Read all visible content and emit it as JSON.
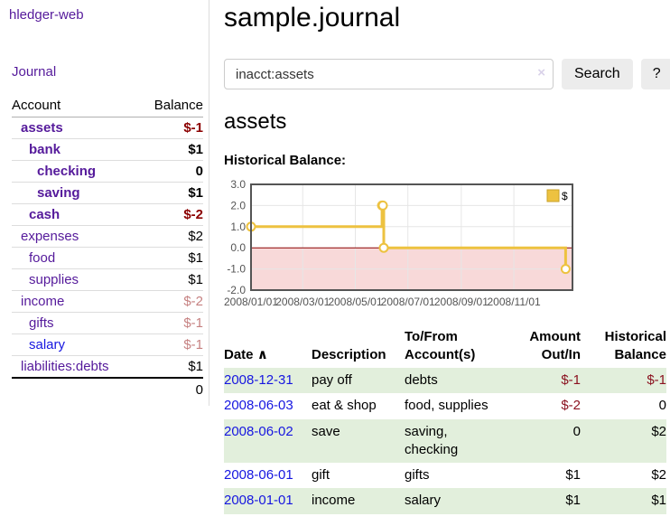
{
  "app": {
    "brand": "hledger-web"
  },
  "colors": {
    "link_purple": "#551a9b",
    "link_blue": "#1616e0",
    "negative_strong": "#8b0000",
    "negative_muted": "rgba(139,0,0,0.5)",
    "row_stripe_green": "#e2efdc",
    "chart_line_gold": "#EDC240",
    "chart_negative_fill": "#f8d9d9",
    "chart_zero_line": "#8b0000"
  },
  "sidebar": {
    "nav": [
      {
        "label": "Journal"
      }
    ],
    "accounts_table": {
      "headers": {
        "account": "Account",
        "balance": "Balance"
      },
      "rows": [
        {
          "account": "assets",
          "balance": "$-1",
          "depth": 1,
          "bold": true,
          "balance_style": "negative-strong",
          "link_style": "visited"
        },
        {
          "account": "bank",
          "balance": "$1",
          "depth": 2,
          "bold": true,
          "balance_style": "bold",
          "link_style": "visited"
        },
        {
          "account": "checking",
          "balance": "0",
          "depth": 3,
          "bold": true,
          "balance_style": "bold",
          "link_style": "visited"
        },
        {
          "account": "saving",
          "balance": "$1",
          "depth": 3,
          "bold": true,
          "balance_style": "bold",
          "link_style": "visited"
        },
        {
          "account": "cash",
          "balance": "$-2",
          "depth": 2,
          "bold": true,
          "balance_style": "negative-strong",
          "link_style": "visited"
        },
        {
          "account": "expenses",
          "balance": "$2",
          "depth": 1,
          "bold": false,
          "balance_style": "normal",
          "link_style": "visited"
        },
        {
          "account": "food",
          "balance": "$1",
          "depth": 2,
          "bold": false,
          "balance_style": "normal",
          "link_style": "visited"
        },
        {
          "account": "supplies",
          "balance": "$1",
          "depth": 2,
          "bold": false,
          "balance_style": "normal",
          "link_style": "visited"
        },
        {
          "account": "income",
          "balance": "$-2",
          "depth": 1,
          "bold": false,
          "balance_style": "negative-muted",
          "link_style": "visited"
        },
        {
          "account": "gifts",
          "balance": "$-1",
          "depth": 2,
          "bold": false,
          "balance_style": "negative-muted",
          "link_style": "visited"
        },
        {
          "account": "salary",
          "balance": "$-1",
          "depth": 2,
          "bold": false,
          "balance_style": "negative-muted",
          "link_style": "unvisited"
        },
        {
          "account": "liabilities:debts",
          "balance": "$1",
          "depth": 1,
          "bold": false,
          "balance_style": "normal",
          "link_style": "visited"
        }
      ],
      "total": "0"
    }
  },
  "header": {
    "title": "sample.journal"
  },
  "search": {
    "query": "inacct:assets",
    "clear_icon": "×",
    "button_label": "Search",
    "help_label": "?"
  },
  "main": {
    "account_title": "assets",
    "chart_title": "Historical Balance:"
  },
  "chart_data": {
    "type": "line",
    "title": "Historical Balance:",
    "step": true,
    "ylim": [
      -2.0,
      3.0
    ],
    "y_ticks": [
      3.0,
      2.0,
      1.0,
      0.0,
      -1.0,
      -2.0
    ],
    "x_tick_labels": [
      "2008/01/01",
      "2008/03/01",
      "2008/05/01",
      "2008/07/01",
      "2008/09/01",
      "2008/11/01"
    ],
    "legend_position": "top-right",
    "grid": true,
    "negative_region_color": "#f8d9d9",
    "zero_line_color": "#8b0000",
    "series": [
      {
        "name": "$",
        "color": "#EDC240",
        "points": [
          {
            "x": "2008-01-01",
            "y": 1
          },
          {
            "x": "2008-06-01",
            "y": 2
          },
          {
            "x": "2008-06-02",
            "y": 2
          },
          {
            "x": "2008-06-03",
            "y": 0
          },
          {
            "x": "2008-12-31",
            "y": -1
          }
        ]
      }
    ]
  },
  "register": {
    "headers": [
      "Date",
      "Description",
      "To/From Account(s)",
      "Amount Out/In",
      "Historical Balance"
    ],
    "sort_icon": "∧",
    "rows": [
      {
        "date": "2008-12-31",
        "description": "pay off",
        "accounts": "debts",
        "amount": "$-1",
        "balance": "$-1"
      },
      {
        "date": "2008-06-03",
        "description": "eat & shop",
        "accounts": "food, supplies",
        "amount": "$-2",
        "balance": "0"
      },
      {
        "date": "2008-06-02",
        "description": "save",
        "accounts": "saving,\nchecking",
        "amount": "0",
        "balance": "$2"
      },
      {
        "date": "2008-06-01",
        "description": "gift",
        "accounts": "gifts",
        "amount": "$1",
        "balance": "$2"
      },
      {
        "date": "2008-01-01",
        "description": "income",
        "accounts": "salary",
        "amount": "$1",
        "balance": "$1"
      }
    ]
  }
}
